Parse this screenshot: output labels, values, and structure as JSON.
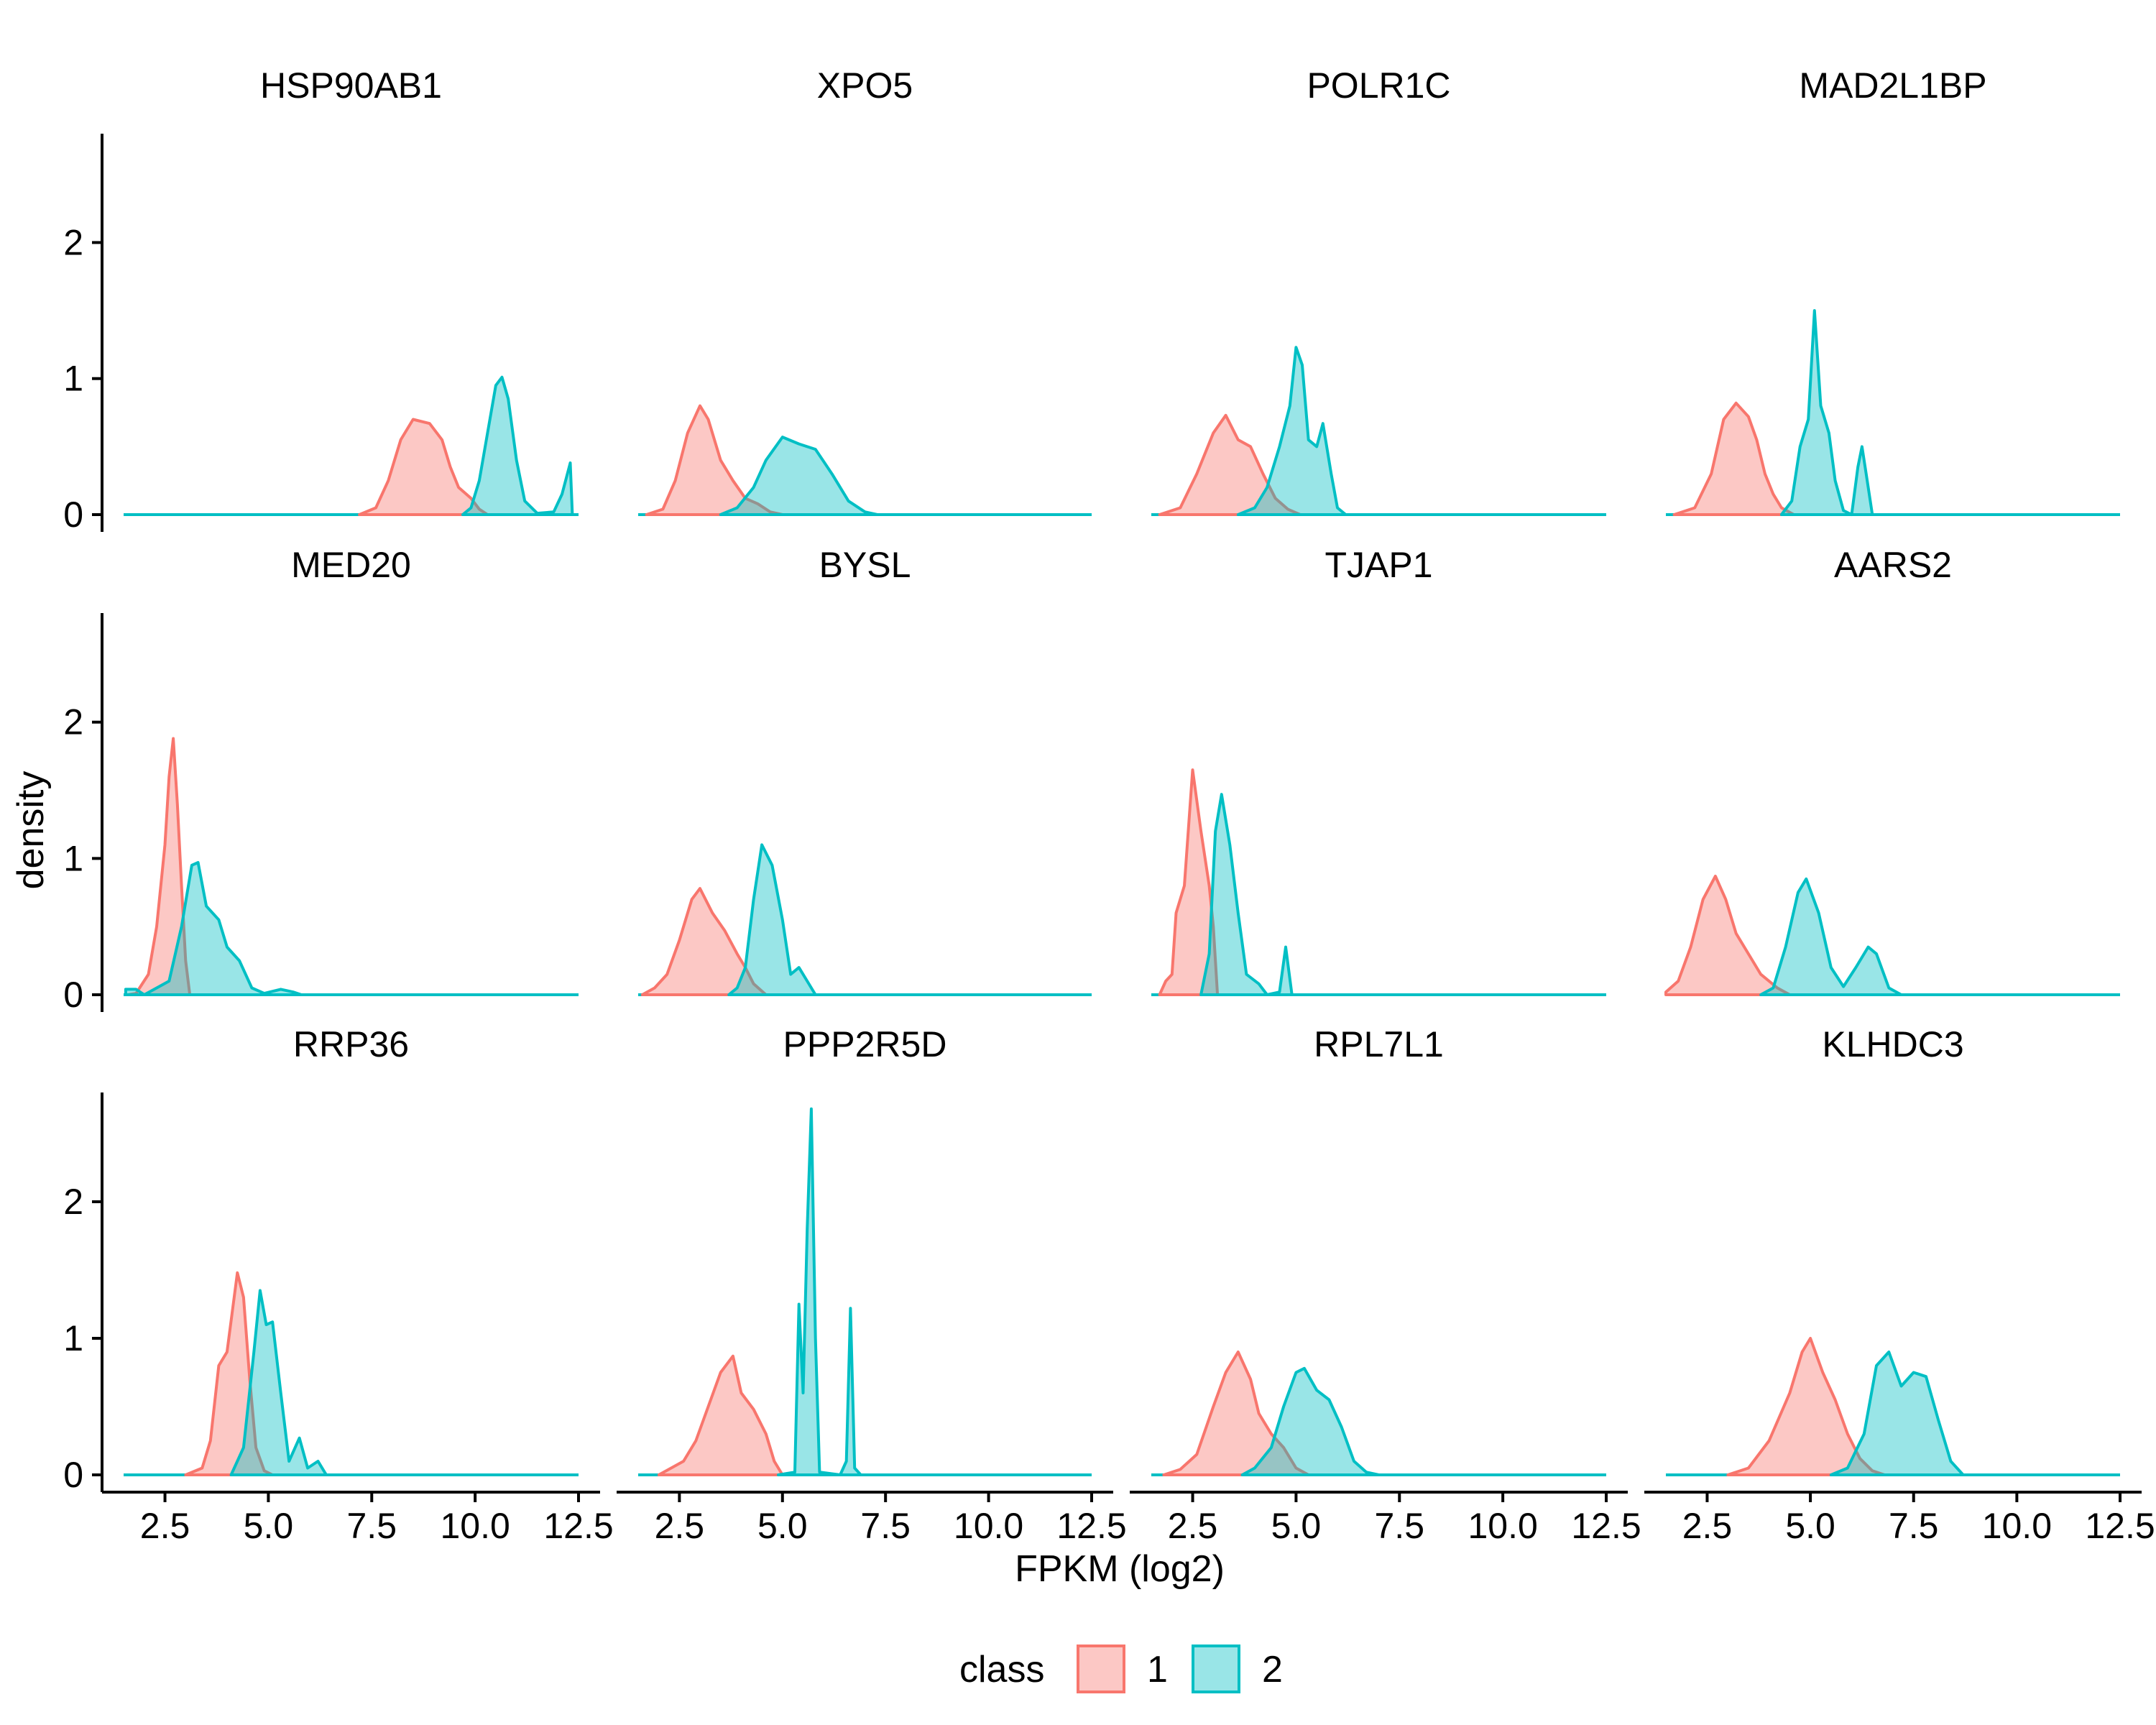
{
  "chart_data": {
    "type": "area",
    "subtype": "faceted-density",
    "layout": {
      "rows": 3,
      "cols": 4
    },
    "xlabel": "FPKM (log2)",
    "ylabel": "density",
    "xlim": [
      1.5,
      12.5
    ],
    "ylim": [
      0,
      2.8
    ],
    "xticks": [
      2.5,
      5.0,
      7.5,
      10.0,
      12.5
    ],
    "xtick_labels": [
      "2.5",
      "5.0",
      "7.5",
      "10.0",
      "12.5"
    ],
    "yticks": [
      0,
      1,
      2
    ],
    "ytick_labels": [
      "0",
      "1",
      "2"
    ],
    "grid": false,
    "legend": {
      "title": "class",
      "placement": "bottom",
      "entries": [
        {
          "label": "1",
          "fill": "#F8766D",
          "stroke": "#F8766D"
        },
        {
          "label": "2",
          "fill": "#00BFC4",
          "stroke": "#00BFC4"
        }
      ]
    },
    "colors": {
      "class1": "#F8766D",
      "class2": "#00BFC4",
      "fill_opacity": 0.4
    },
    "panels": [
      {
        "gene": "HSP90AB1",
        "class1": [
          [
            7.2,
            0
          ],
          [
            7.6,
            0.05
          ],
          [
            7.9,
            0.25
          ],
          [
            8.2,
            0.55
          ],
          [
            8.5,
            0.7
          ],
          [
            8.9,
            0.67
          ],
          [
            9.2,
            0.55
          ],
          [
            9.4,
            0.35
          ],
          [
            9.6,
            0.2
          ],
          [
            9.9,
            0.12
          ],
          [
            10.1,
            0.04
          ],
          [
            10.3,
            0
          ]
        ],
        "class2": [
          [
            9.7,
            0
          ],
          [
            9.9,
            0.05
          ],
          [
            10.1,
            0.25
          ],
          [
            10.3,
            0.6
          ],
          [
            10.5,
            0.95
          ],
          [
            10.65,
            1.01
          ],
          [
            10.8,
            0.85
          ],
          [
            11.0,
            0.4
          ],
          [
            11.2,
            0.1
          ],
          [
            11.5,
            0.01
          ],
          [
            11.9,
            0.02
          ],
          [
            12.1,
            0.15
          ],
          [
            12.3,
            0.38
          ],
          [
            12.35,
            0
          ]
        ]
      },
      {
        "gene": "XPO5",
        "class1": [
          [
            1.7,
            0
          ],
          [
            2.1,
            0.04
          ],
          [
            2.4,
            0.25
          ],
          [
            2.7,
            0.6
          ],
          [
            3.0,
            0.8
          ],
          [
            3.2,
            0.7
          ],
          [
            3.5,
            0.4
          ],
          [
            3.8,
            0.25
          ],
          [
            4.1,
            0.12
          ],
          [
            4.4,
            0.08
          ],
          [
            4.7,
            0.02
          ],
          [
            5.0,
            0
          ]
        ],
        "class2": [
          [
            3.5,
            0
          ],
          [
            3.9,
            0.05
          ],
          [
            4.3,
            0.2
          ],
          [
            4.6,
            0.4
          ],
          [
            5.0,
            0.57
          ],
          [
            5.4,
            0.52
          ],
          [
            5.8,
            0.48
          ],
          [
            6.2,
            0.3
          ],
          [
            6.6,
            0.1
          ],
          [
            7.0,
            0.02
          ],
          [
            7.3,
            0
          ]
        ]
      },
      {
        "gene": "POLR1C",
        "class1": [
          [
            1.7,
            0
          ],
          [
            2.2,
            0.05
          ],
          [
            2.6,
            0.3
          ],
          [
            3.0,
            0.6
          ],
          [
            3.3,
            0.73
          ],
          [
            3.6,
            0.55
          ],
          [
            3.9,
            0.5
          ],
          [
            4.2,
            0.3
          ],
          [
            4.5,
            0.12
          ],
          [
            4.8,
            0.04
          ],
          [
            5.1,
            0
          ]
        ],
        "class2": [
          [
            3.6,
            0
          ],
          [
            4.0,
            0.05
          ],
          [
            4.3,
            0.2
          ],
          [
            4.6,
            0.5
          ],
          [
            4.85,
            0.8
          ],
          [
            5.0,
            1.23
          ],
          [
            5.15,
            1.1
          ],
          [
            5.3,
            0.55
          ],
          [
            5.5,
            0.5
          ],
          [
            5.65,
            0.67
          ],
          [
            5.85,
            0.3
          ],
          [
            6.0,
            0.05
          ],
          [
            6.2,
            0
          ]
        ]
      },
      {
        "gene": "MAD2L1BP",
        "class1": [
          [
            1.7,
            0
          ],
          [
            2.2,
            0.05
          ],
          [
            2.6,
            0.3
          ],
          [
            2.9,
            0.7
          ],
          [
            3.2,
            0.82
          ],
          [
            3.5,
            0.72
          ],
          [
            3.7,
            0.55
          ],
          [
            3.9,
            0.3
          ],
          [
            4.1,
            0.15
          ],
          [
            4.3,
            0.05
          ],
          [
            4.6,
            0
          ]
        ],
        "class2": [
          [
            4.3,
            0
          ],
          [
            4.55,
            0.1
          ],
          [
            4.75,
            0.5
          ],
          [
            4.95,
            0.7
          ],
          [
            5.1,
            1.5
          ],
          [
            5.25,
            0.8
          ],
          [
            5.45,
            0.6
          ],
          [
            5.6,
            0.25
          ],
          [
            5.8,
            0.03
          ],
          [
            6.0,
            0
          ],
          [
            6.15,
            0.35
          ],
          [
            6.25,
            0.5
          ],
          [
            6.35,
            0.3
          ],
          [
            6.5,
            0
          ]
        ]
      },
      {
        "gene": "MED20",
        "class1": [
          [
            1.6,
            0
          ],
          [
            1.8,
            0.01
          ],
          [
            2.1,
            0.15
          ],
          [
            2.3,
            0.5
          ],
          [
            2.5,
            1.1
          ],
          [
            2.6,
            1.6
          ],
          [
            2.7,
            1.88
          ],
          [
            2.8,
            1.4
          ],
          [
            2.9,
            0.8
          ],
          [
            3.0,
            0.25
          ],
          [
            3.1,
            0
          ]
        ],
        "class2": [
          [
            1.55,
            0.04
          ],
          [
            1.8,
            0.04
          ],
          [
            2.0,
            0
          ],
          [
            2.6,
            0.1
          ],
          [
            2.9,
            0.5
          ],
          [
            3.15,
            0.95
          ],
          [
            3.3,
            0.97
          ],
          [
            3.5,
            0.65
          ],
          [
            3.8,
            0.55
          ],
          [
            4.0,
            0.35
          ],
          [
            4.3,
            0.25
          ],
          [
            4.6,
            0.05
          ],
          [
            4.9,
            0.01
          ],
          [
            5.3,
            0.04
          ],
          [
            5.6,
            0.02
          ],
          [
            5.8,
            0
          ]
        ]
      },
      {
        "gene": "BYSL",
        "class1": [
          [
            1.6,
            0
          ],
          [
            1.9,
            0.05
          ],
          [
            2.2,
            0.15
          ],
          [
            2.5,
            0.4
          ],
          [
            2.8,
            0.7
          ],
          [
            3.0,
            0.78
          ],
          [
            3.3,
            0.6
          ],
          [
            3.6,
            0.47
          ],
          [
            3.9,
            0.3
          ],
          [
            4.1,
            0.2
          ],
          [
            4.3,
            0.08
          ],
          [
            4.6,
            0
          ]
        ],
        "class2": [
          [
            3.7,
            0
          ],
          [
            3.9,
            0.05
          ],
          [
            4.1,
            0.2
          ],
          [
            4.3,
            0.7
          ],
          [
            4.5,
            1.1
          ],
          [
            4.75,
            0.95
          ],
          [
            5.0,
            0.55
          ],
          [
            5.2,
            0.15
          ],
          [
            5.4,
            0.2
          ],
          [
            5.6,
            0.1
          ],
          [
            5.8,
            0
          ]
        ]
      },
      {
        "gene": "TJAP1",
        "class1": [
          [
            1.7,
            0
          ],
          [
            1.85,
            0.1
          ],
          [
            2.0,
            0.15
          ],
          [
            2.1,
            0.6
          ],
          [
            2.3,
            0.8
          ],
          [
            2.5,
            1.65
          ],
          [
            2.7,
            1.2
          ],
          [
            2.9,
            0.8
          ],
          [
            3.0,
            0.5
          ],
          [
            3.1,
            0
          ]
        ],
        "class2": [
          [
            2.7,
            0
          ],
          [
            2.9,
            0.3
          ],
          [
            3.05,
            1.2
          ],
          [
            3.2,
            1.47
          ],
          [
            3.4,
            1.1
          ],
          [
            3.6,
            0.6
          ],
          [
            3.8,
            0.15
          ],
          [
            4.1,
            0.08
          ],
          [
            4.3,
            0
          ],
          [
            4.6,
            0.02
          ],
          [
            4.75,
            0.35
          ],
          [
            4.9,
            0
          ],
          [
            5.1,
            0
          ]
        ]
      },
      {
        "gene": "AARS2",
        "class1": [
          [
            1.5,
            0.02
          ],
          [
            1.8,
            0.1
          ],
          [
            2.1,
            0.35
          ],
          [
            2.4,
            0.7
          ],
          [
            2.7,
            0.87
          ],
          [
            2.95,
            0.7
          ],
          [
            3.2,
            0.45
          ],
          [
            3.5,
            0.3
          ],
          [
            3.8,
            0.15
          ],
          [
            4.2,
            0.05
          ],
          [
            4.5,
            0
          ]
        ],
        "class2": [
          [
            3.8,
            0
          ],
          [
            4.1,
            0.05
          ],
          [
            4.4,
            0.35
          ],
          [
            4.7,
            0.75
          ],
          [
            4.9,
            0.85
          ],
          [
            5.2,
            0.6
          ],
          [
            5.5,
            0.2
          ],
          [
            5.8,
            0.06
          ],
          [
            6.1,
            0.2
          ],
          [
            6.4,
            0.35
          ],
          [
            6.6,
            0.3
          ],
          [
            6.9,
            0.05
          ],
          [
            7.2,
            0
          ]
        ]
      },
      {
        "gene": "RRP36",
        "class1": [
          [
            3.0,
            0
          ],
          [
            3.4,
            0.05
          ],
          [
            3.6,
            0.25
          ],
          [
            3.8,
            0.8
          ],
          [
            4.0,
            0.9
          ],
          [
            4.25,
            1.48
          ],
          [
            4.4,
            1.3
          ],
          [
            4.55,
            0.7
          ],
          [
            4.7,
            0.2
          ],
          [
            4.9,
            0.03
          ],
          [
            5.1,
            0
          ]
        ],
        "class2": [
          [
            4.1,
            0
          ],
          [
            4.4,
            0.2
          ],
          [
            4.65,
            0.9
          ],
          [
            4.8,
            1.35
          ],
          [
            4.95,
            1.1
          ],
          [
            5.1,
            1.12
          ],
          [
            5.3,
            0.6
          ],
          [
            5.5,
            0.1
          ],
          [
            5.75,
            0.27
          ],
          [
            5.95,
            0.05
          ],
          [
            6.2,
            0.1
          ],
          [
            6.4,
            0
          ],
          [
            6.6,
            0
          ]
        ]
      },
      {
        "gene": "PPP2R5D",
        "class1": [
          [
            2.0,
            0
          ],
          [
            2.3,
            0.05
          ],
          [
            2.6,
            0.1
          ],
          [
            2.9,
            0.25
          ],
          [
            3.2,
            0.5
          ],
          [
            3.5,
            0.75
          ],
          [
            3.8,
            0.87
          ],
          [
            4.0,
            0.6
          ],
          [
            4.3,
            0.48
          ],
          [
            4.6,
            0.3
          ],
          [
            4.8,
            0.1
          ],
          [
            5.0,
            0
          ]
        ],
        "class2": [
          [
            4.9,
            0
          ],
          [
            5.3,
            0.02
          ],
          [
            5.4,
            1.25
          ],
          [
            5.5,
            0.6
          ],
          [
            5.6,
            1.8
          ],
          [
            5.7,
            2.68
          ],
          [
            5.8,
            1.0
          ],
          [
            5.9,
            0.02
          ],
          [
            6.4,
            0
          ],
          [
            6.55,
            0.1
          ],
          [
            6.65,
            1.22
          ],
          [
            6.75,
            0.05
          ],
          [
            6.9,
            0
          ]
        ]
      },
      {
        "gene": "RPL7L1",
        "class1": [
          [
            1.8,
            0
          ],
          [
            2.2,
            0.04
          ],
          [
            2.6,
            0.15
          ],
          [
            3.0,
            0.5
          ],
          [
            3.3,
            0.75
          ],
          [
            3.6,
            0.9
          ],
          [
            3.9,
            0.7
          ],
          [
            4.1,
            0.45
          ],
          [
            4.4,
            0.3
          ],
          [
            4.7,
            0.2
          ],
          [
            5.0,
            0.05
          ],
          [
            5.3,
            0
          ]
        ],
        "class2": [
          [
            3.7,
            0
          ],
          [
            4.0,
            0.05
          ],
          [
            4.4,
            0.2
          ],
          [
            4.7,
            0.5
          ],
          [
            5.0,
            0.75
          ],
          [
            5.2,
            0.78
          ],
          [
            5.5,
            0.62
          ],
          [
            5.8,
            0.55
          ],
          [
            6.1,
            0.35
          ],
          [
            6.4,
            0.1
          ],
          [
            6.7,
            0.02
          ],
          [
            7.0,
            0
          ]
        ]
      },
      {
        "gene": "KLHDC3",
        "class1": [
          [
            3.0,
            0
          ],
          [
            3.5,
            0.05
          ],
          [
            4.0,
            0.25
          ],
          [
            4.5,
            0.6
          ],
          [
            4.8,
            0.9
          ],
          [
            5.0,
            1.0
          ],
          [
            5.3,
            0.75
          ],
          [
            5.6,
            0.55
          ],
          [
            5.9,
            0.3
          ],
          [
            6.2,
            0.12
          ],
          [
            6.5,
            0.03
          ],
          [
            6.8,
            0
          ]
        ],
        "class2": [
          [
            5.5,
            0
          ],
          [
            5.9,
            0.05
          ],
          [
            6.3,
            0.3
          ],
          [
            6.6,
            0.8
          ],
          [
            6.9,
            0.9
          ],
          [
            7.2,
            0.65
          ],
          [
            7.5,
            0.75
          ],
          [
            7.8,
            0.72
          ],
          [
            8.1,
            0.4
          ],
          [
            8.4,
            0.1
          ],
          [
            8.7,
            0
          ]
        ]
      }
    ]
  }
}
